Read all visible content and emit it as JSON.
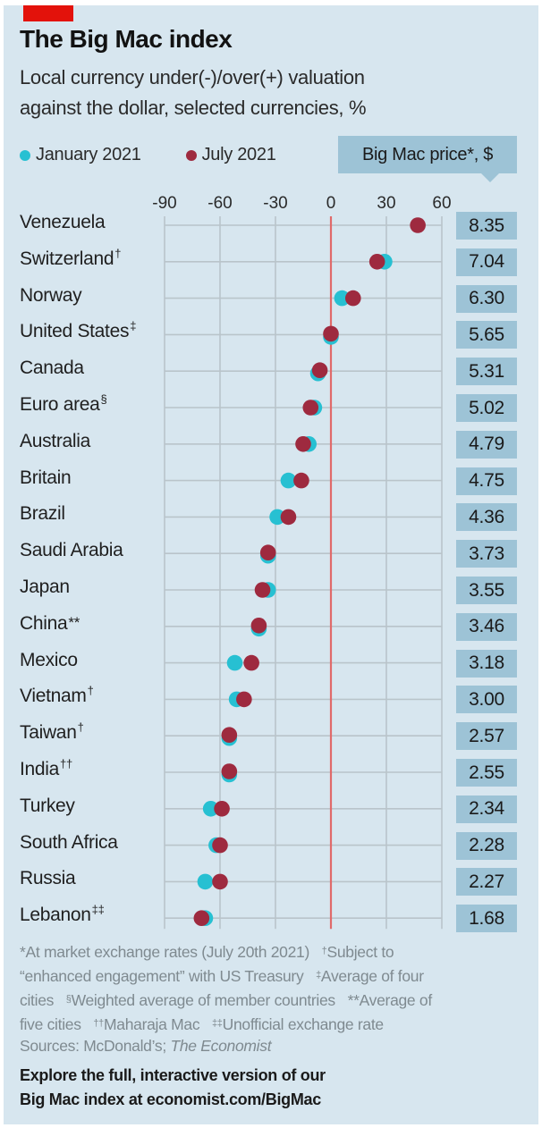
{
  "header": {
    "title": "The Big Mac index",
    "subtitle_line1": "Local currency under(-)/over(+) valuation",
    "subtitle_line2": "against the dollar, selected currencies, %"
  },
  "legend": {
    "items": [
      {
        "label": "January 2021",
        "color": "#27c0d2"
      },
      {
        "label": "July 2021",
        "color": "#9e2a3f"
      }
    ]
  },
  "price_header": "Big Mac price*, $",
  "colors": {
    "panel_bg": "#d7e6ef",
    "accent_red": "#e3120b",
    "zero_line": "#e06a6a",
    "grid": "#b9c4ca",
    "price_box": "#9dc3d6"
  },
  "chart_data": {
    "type": "scatter",
    "title": "The Big Mac index",
    "subtitle": "Local currency under(-)/over(+) valuation against the dollar, selected currencies, %",
    "xlabel": "",
    "ylabel": "",
    "xlim": [
      -90,
      60
    ],
    "xticks": [
      -90,
      -60,
      -30,
      0,
      30,
      60
    ],
    "xtick_labels": [
      "-90",
      "-60",
      "-30",
      "0",
      "30",
      "60"
    ],
    "grid": true,
    "legend_position": "top-left",
    "categories": [
      "Venezuela",
      "Switzerland",
      "Norway",
      "United States",
      "Canada",
      "Euro area",
      "Australia",
      "Britain",
      "Brazil",
      "Saudi Arabia",
      "Japan",
      "China",
      "Mexico",
      "Vietnam",
      "Taiwan",
      "India",
      "Turkey",
      "South Africa",
      "Russia",
      "Lebanon"
    ],
    "footnote_marks": [
      "",
      "†",
      "",
      "‡",
      "",
      "§",
      "",
      "",
      "",
      "",
      "",
      "**",
      "",
      "†",
      "†",
      "††",
      "",
      "",
      "",
      "‡‡"
    ],
    "series": [
      {
        "name": "January 2021",
        "values": [
          null,
          29,
          6,
          0,
          -7,
          -9,
          -12,
          -23,
          -29,
          -34,
          -34,
          -39,
          -52,
          -51,
          -55,
          -55,
          -65,
          -62,
          -68,
          -68
        ]
      },
      {
        "name": "July 2021",
        "values": [
          47,
          25,
          12,
          0,
          -6,
          -11,
          -15,
          -16,
          -23,
          -34,
          -37,
          -39,
          -43,
          -47,
          -55,
          -55,
          -59,
          -60,
          -60,
          -70
        ]
      }
    ],
    "big_mac_price_usd": [
      "8.35",
      "7.04",
      "6.30",
      "5.65",
      "5.31",
      "5.02",
      "4.79",
      "4.75",
      "4.36",
      "3.73",
      "3.55",
      "3.46",
      "3.18",
      "3.00",
      "2.57",
      "2.55",
      "2.34",
      "2.28",
      "2.27",
      "1.68"
    ]
  },
  "footnotes": {
    "l1a": "*At market exchange rates (July 20th 2021)",
    "l1b_mark": "†",
    "l1b": "Subject to",
    "l2a": "“enhanced engagement” with US Treasury",
    "l2b_mark": "‡",
    "l2b": "Average of four",
    "l3a": "cities",
    "l3b_mark": "§",
    "l3b": "Weighted average of member countries",
    "l3c": "**Average of",
    "l4a": "five cities",
    "l4b_mark": "††",
    "l4b": "Maharaja Mac",
    "l4c_mark": "‡‡",
    "l4c": "Unofficial exchange rate"
  },
  "sources": {
    "prefix": "Sources: McDonald’s; ",
    "italic": "The Economist"
  },
  "explore": {
    "line1": "Explore the full, interactive version of our",
    "line2": "Big Mac index at economist.com/BigMac"
  }
}
